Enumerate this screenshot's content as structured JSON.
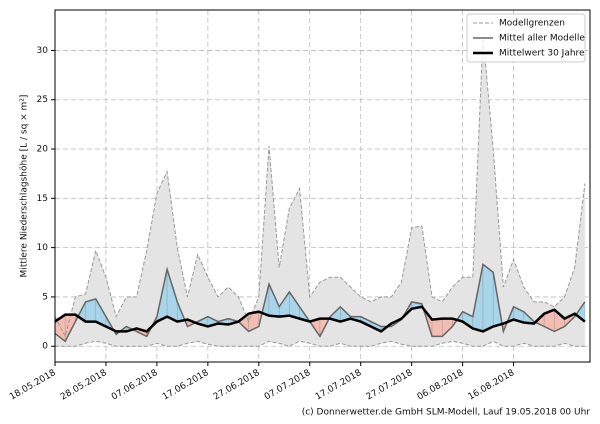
{
  "chart_data": {
    "type": "precip-ensemble",
    "y_label": "Mittlere Niederschlagshöhe [L / sq × m²]",
    "footer": "(c) Donnerwetter.de GmbH SLM-Modell, Lauf 19.05.2018 00 Uhr",
    "x": [
      "18.05.2018",
      "20.05.2018",
      "22.05.2018",
      "24.05.2018",
      "26.05.2018",
      "28.05.2018",
      "30.05.2018",
      "01.06.2018",
      "03.06.2018",
      "05.06.2018",
      "07.06.2018",
      "09.06.2018",
      "11.06.2018",
      "13.06.2018",
      "15.06.2018",
      "17.06.2018",
      "19.06.2018",
      "21.06.2018",
      "23.06.2018",
      "25.06.2018",
      "27.06.2018",
      "29.06.2018",
      "01.07.2018",
      "03.07.2018",
      "05.07.2018",
      "07.07.2018",
      "09.07.2018",
      "11.07.2018",
      "13.07.2018",
      "15.07.2018",
      "17.07.2018",
      "19.07.2018",
      "21.07.2018",
      "23.07.2018",
      "25.07.2018",
      "27.07.2018",
      "29.07.2018",
      "31.07.2018",
      "02.08.2018",
      "04.08.2018",
      "06.08.2018",
      "08.08.2018",
      "10.08.2018",
      "12.08.2018",
      "14.08.2018",
      "16.08.2018",
      "18.08.2018",
      "20.08.2018",
      "22.08.2018",
      "24.08.2018",
      "26.08.2018",
      "28.08.2018",
      "30.08.2018"
    ],
    "series": [
      {
        "name": "Modellgrenzen",
        "color": "#999999",
        "style": "dashed",
        "values": [
          3,
          1,
          5,
          5.3,
          9.7,
          7,
          3,
          5,
          5,
          9.7,
          15.5,
          17.7,
          10,
          5,
          9.3,
          7,
          5,
          6,
          5,
          2.5,
          5,
          20.3,
          8,
          14,
          16,
          5,
          6.5,
          7,
          7,
          6,
          5,
          4.5,
          5,
          5,
          6.5,
          12,
          12.2,
          5,
          4.5,
          6,
          7,
          7,
          31.5,
          20,
          6,
          8.8,
          6,
          4.5,
          4.5,
          4,
          5,
          8,
          16.5
        ],
        "lower": [
          0,
          0,
          0,
          0.3,
          0.5,
          0.3,
          0,
          0,
          0,
          0,
          0.3,
          0,
          0,
          0.3,
          0.5,
          0.2,
          0,
          0,
          0,
          0,
          0,
          0.5,
          0.3,
          0,
          0.5,
          0.3,
          0,
          0,
          0.3,
          0,
          0,
          0,
          0.3,
          0.5,
          0.2,
          0,
          0,
          0,
          0.3,
          0.5,
          0.3,
          0,
          0,
          0.5,
          0,
          0,
          0.3,
          0,
          0,
          0,
          0.3,
          0,
          0
        ]
      },
      {
        "name": "Mittel aller Modelle",
        "color": "#666666",
        "style": "solid",
        "values": [
          1.3,
          0.5,
          2.5,
          4.5,
          4.8,
          3,
          1.2,
          2,
          1.5,
          1,
          3,
          7.8,
          4.5,
          2,
          2.5,
          3,
          2.5,
          2.8,
          2.5,
          1.5,
          2,
          6.3,
          4,
          5.5,
          4,
          2.5,
          1,
          3,
          4,
          3,
          3,
          2.5,
          2,
          2,
          2.7,
          4.5,
          4.3,
          1,
          1,
          2,
          3.5,
          3,
          8.3,
          7.5,
          1.5,
          4,
          3.5,
          2.5,
          2,
          1.5,
          2,
          3,
          4.5
        ]
      },
      {
        "name": "Mittelwert 30 Jahre",
        "color": "#000000",
        "style": "thick",
        "values": [
          2.5,
          3.2,
          3.2,
          2.5,
          2.5,
          2,
          1.5,
          1.5,
          1.8,
          1.5,
          2.5,
          3,
          2.5,
          2.7,
          2.3,
          2,
          2.3,
          2.2,
          2.5,
          3.3,
          3.5,
          3.1,
          3,
          3.1,
          2.8,
          2.5,
          2.8,
          2.8,
          2.5,
          2.8,
          2.5,
          2,
          1.5,
          2.3,
          2.8,
          3.8,
          4,
          2.7,
          2.8,
          2.8,
          2.5,
          1.8,
          1.5,
          2,
          2.3,
          2.7,
          2.4,
          2.3,
          3.3,
          3.7,
          2.8,
          3.3,
          2.5
        ]
      }
    ],
    "band_color": "#e4e4e4",
    "fill_above": "#a8d5ea",
    "fill_below": "#f3bdb1",
    "xlim": [
      "18.05.2018",
      "31.08.2018"
    ],
    "xticks": [
      "18.05.2018",
      "28.05.2018",
      "07.06.2018",
      "17.06.2018",
      "27.06.2018",
      "07.07.2018",
      "17.07.2018",
      "27.07.2018",
      "06.08.2018",
      "16.08.2018"
    ],
    "ylim": [
      -1.6,
      34.1
    ],
    "yticks": [
      0,
      5,
      10,
      15,
      20,
      25,
      30
    ],
    "grid": true,
    "legend": "upper right"
  }
}
